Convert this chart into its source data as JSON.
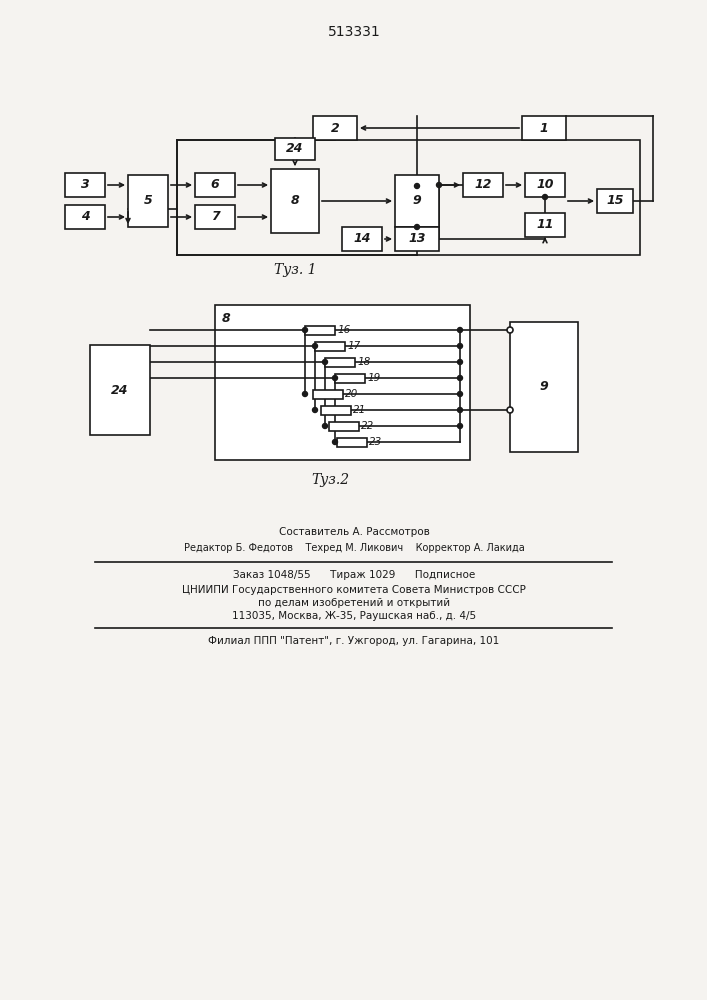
{
  "title": "513331",
  "fig1_caption": "Τуз. 1",
  "fig2_caption": "Τуз.2",
  "footer_lines": [
    "Составитель А. Рассмотров",
    "Редактор Б. Федотов    Техред М. Ликович    Корректор А. Лакида",
    "Заказ 1048/55      Тираж 1029      Подписное",
    "ЦНИИПИ Государственного комитета Совета Министров СССР",
    "по делам изобретений и открытий",
    "113035, Москва, Ж-35, Раушская наб., д. 4/5",
    "Филиал ППП \"Патент\", г. Ужгород, ул. Гагарина, 101"
  ],
  "bg_color": "#f5f3f0",
  "line_color": "#1a1a1a"
}
